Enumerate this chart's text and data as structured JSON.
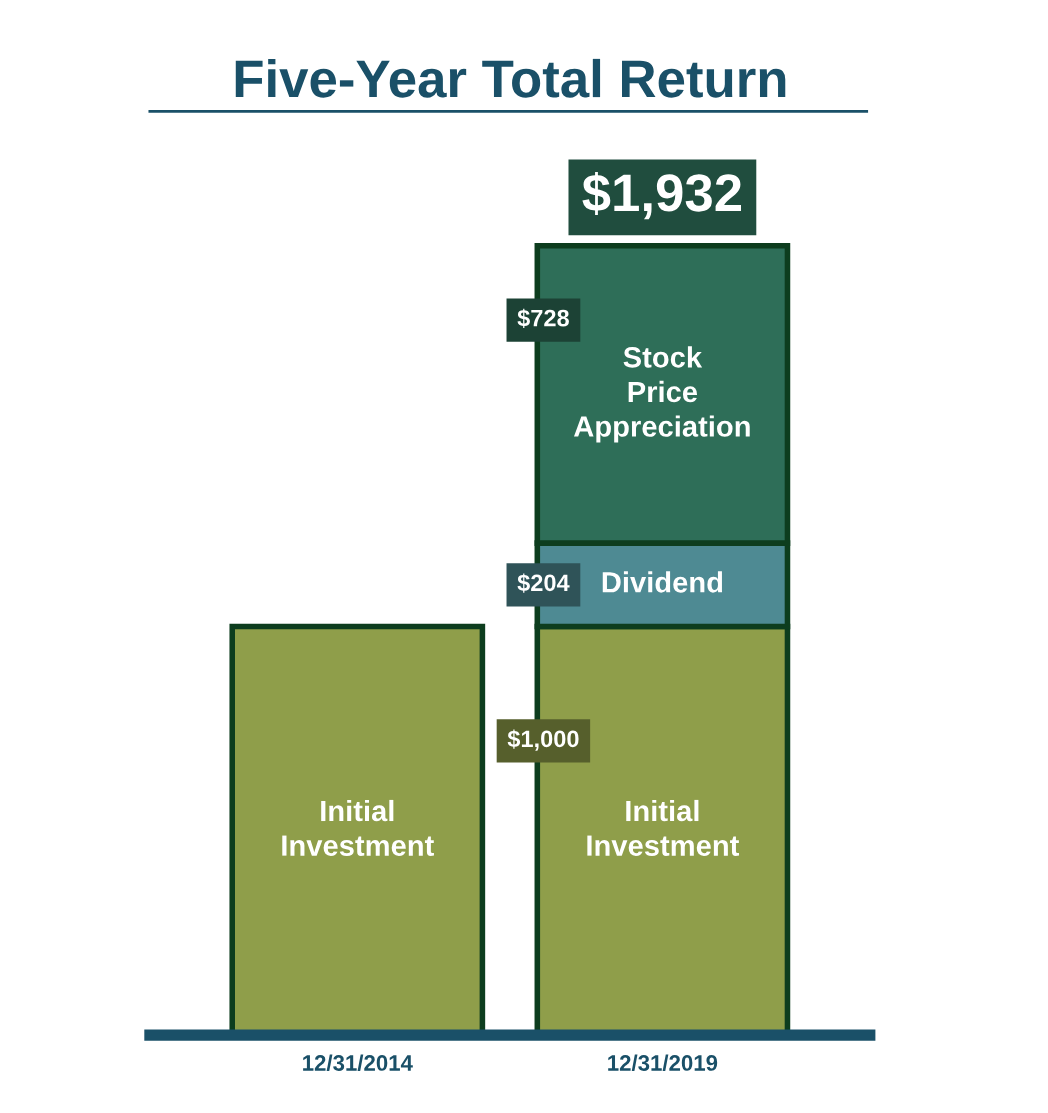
{
  "chart_data": {
    "type": "bar",
    "title": "Five-Year Total Return",
    "categories": [
      "12/31/2014",
      "12/31/2019"
    ],
    "stacked": true,
    "legend": false,
    "series": [
      {
        "name": "Initial\nInvestment",
        "color": "#8f9e4a",
        "values": [
          1000,
          1000
        ],
        "value_labels": [
          null,
          "$1,000"
        ]
      },
      {
        "name": "Dividend",
        "color": "#4e8a93",
        "values": [
          null,
          204
        ],
        "value_labels": [
          null,
          "$204"
        ]
      },
      {
        "name": "Stock\nPrice\nAppreciation",
        "color": "#2e6e58",
        "values": [
          null,
          728
        ],
        "value_labels": [
          null,
          "$728"
        ]
      }
    ],
    "totals": [
      null,
      "$1,932"
    ]
  }
}
